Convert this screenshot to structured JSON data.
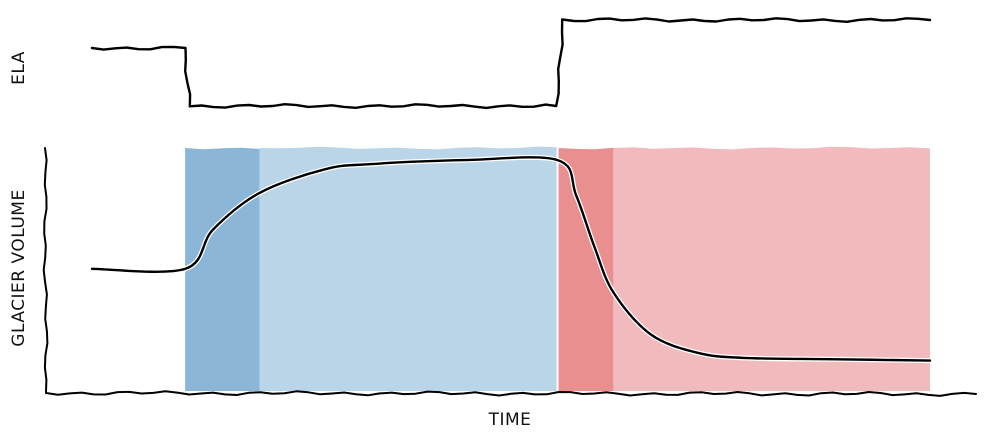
{
  "chart_data": [
    {
      "type": "line",
      "panel": "top",
      "ylabel": "ELA",
      "xlabel": "",
      "y_scale": "relative (no tick values printed)",
      "x": [
        0,
        1.0,
        1.05,
        5.0,
        5.05,
        9.0
      ],
      "values": [
        0.72,
        0.72,
        0.14,
        0.14,
        1.0,
        1.0
      ],
      "ylim": [
        0,
        1.1
      ]
    },
    {
      "type": "area",
      "panel": "bottom",
      "ylabel": "GLACIER VOLUME",
      "xlabel": "TIME",
      "y_scale": "relative (no tick values printed)",
      "x": [
        0,
        1.0,
        1.3,
        1.8,
        2.5,
        3.0,
        4.0,
        5.0,
        5.2,
        5.4,
        5.6,
        6.0,
        6.5,
        7.0,
        8.0,
        9.0
      ],
      "values": [
        0.47,
        0.47,
        0.62,
        0.76,
        0.85,
        0.87,
        0.885,
        0.885,
        0.75,
        0.55,
        0.38,
        0.22,
        0.15,
        0.13,
        0.125,
        0.12
      ],
      "ylim": [
        0,
        1.0
      ],
      "xlim": [
        -0.5,
        9.5
      ],
      "shaded_periods": [
        {
          "start": 1.0,
          "end": 1.8,
          "color": "#8bb6d7"
        },
        {
          "start": 1.8,
          "end": 5.0,
          "color": "#bad5e8"
        },
        {
          "start": 5.0,
          "end": 5.6,
          "color": "#e98f90"
        },
        {
          "start": 5.6,
          "end": 9.0,
          "color": "#f1bbbe"
        }
      ],
      "grid": false,
      "legend": "none"
    }
  ]
}
